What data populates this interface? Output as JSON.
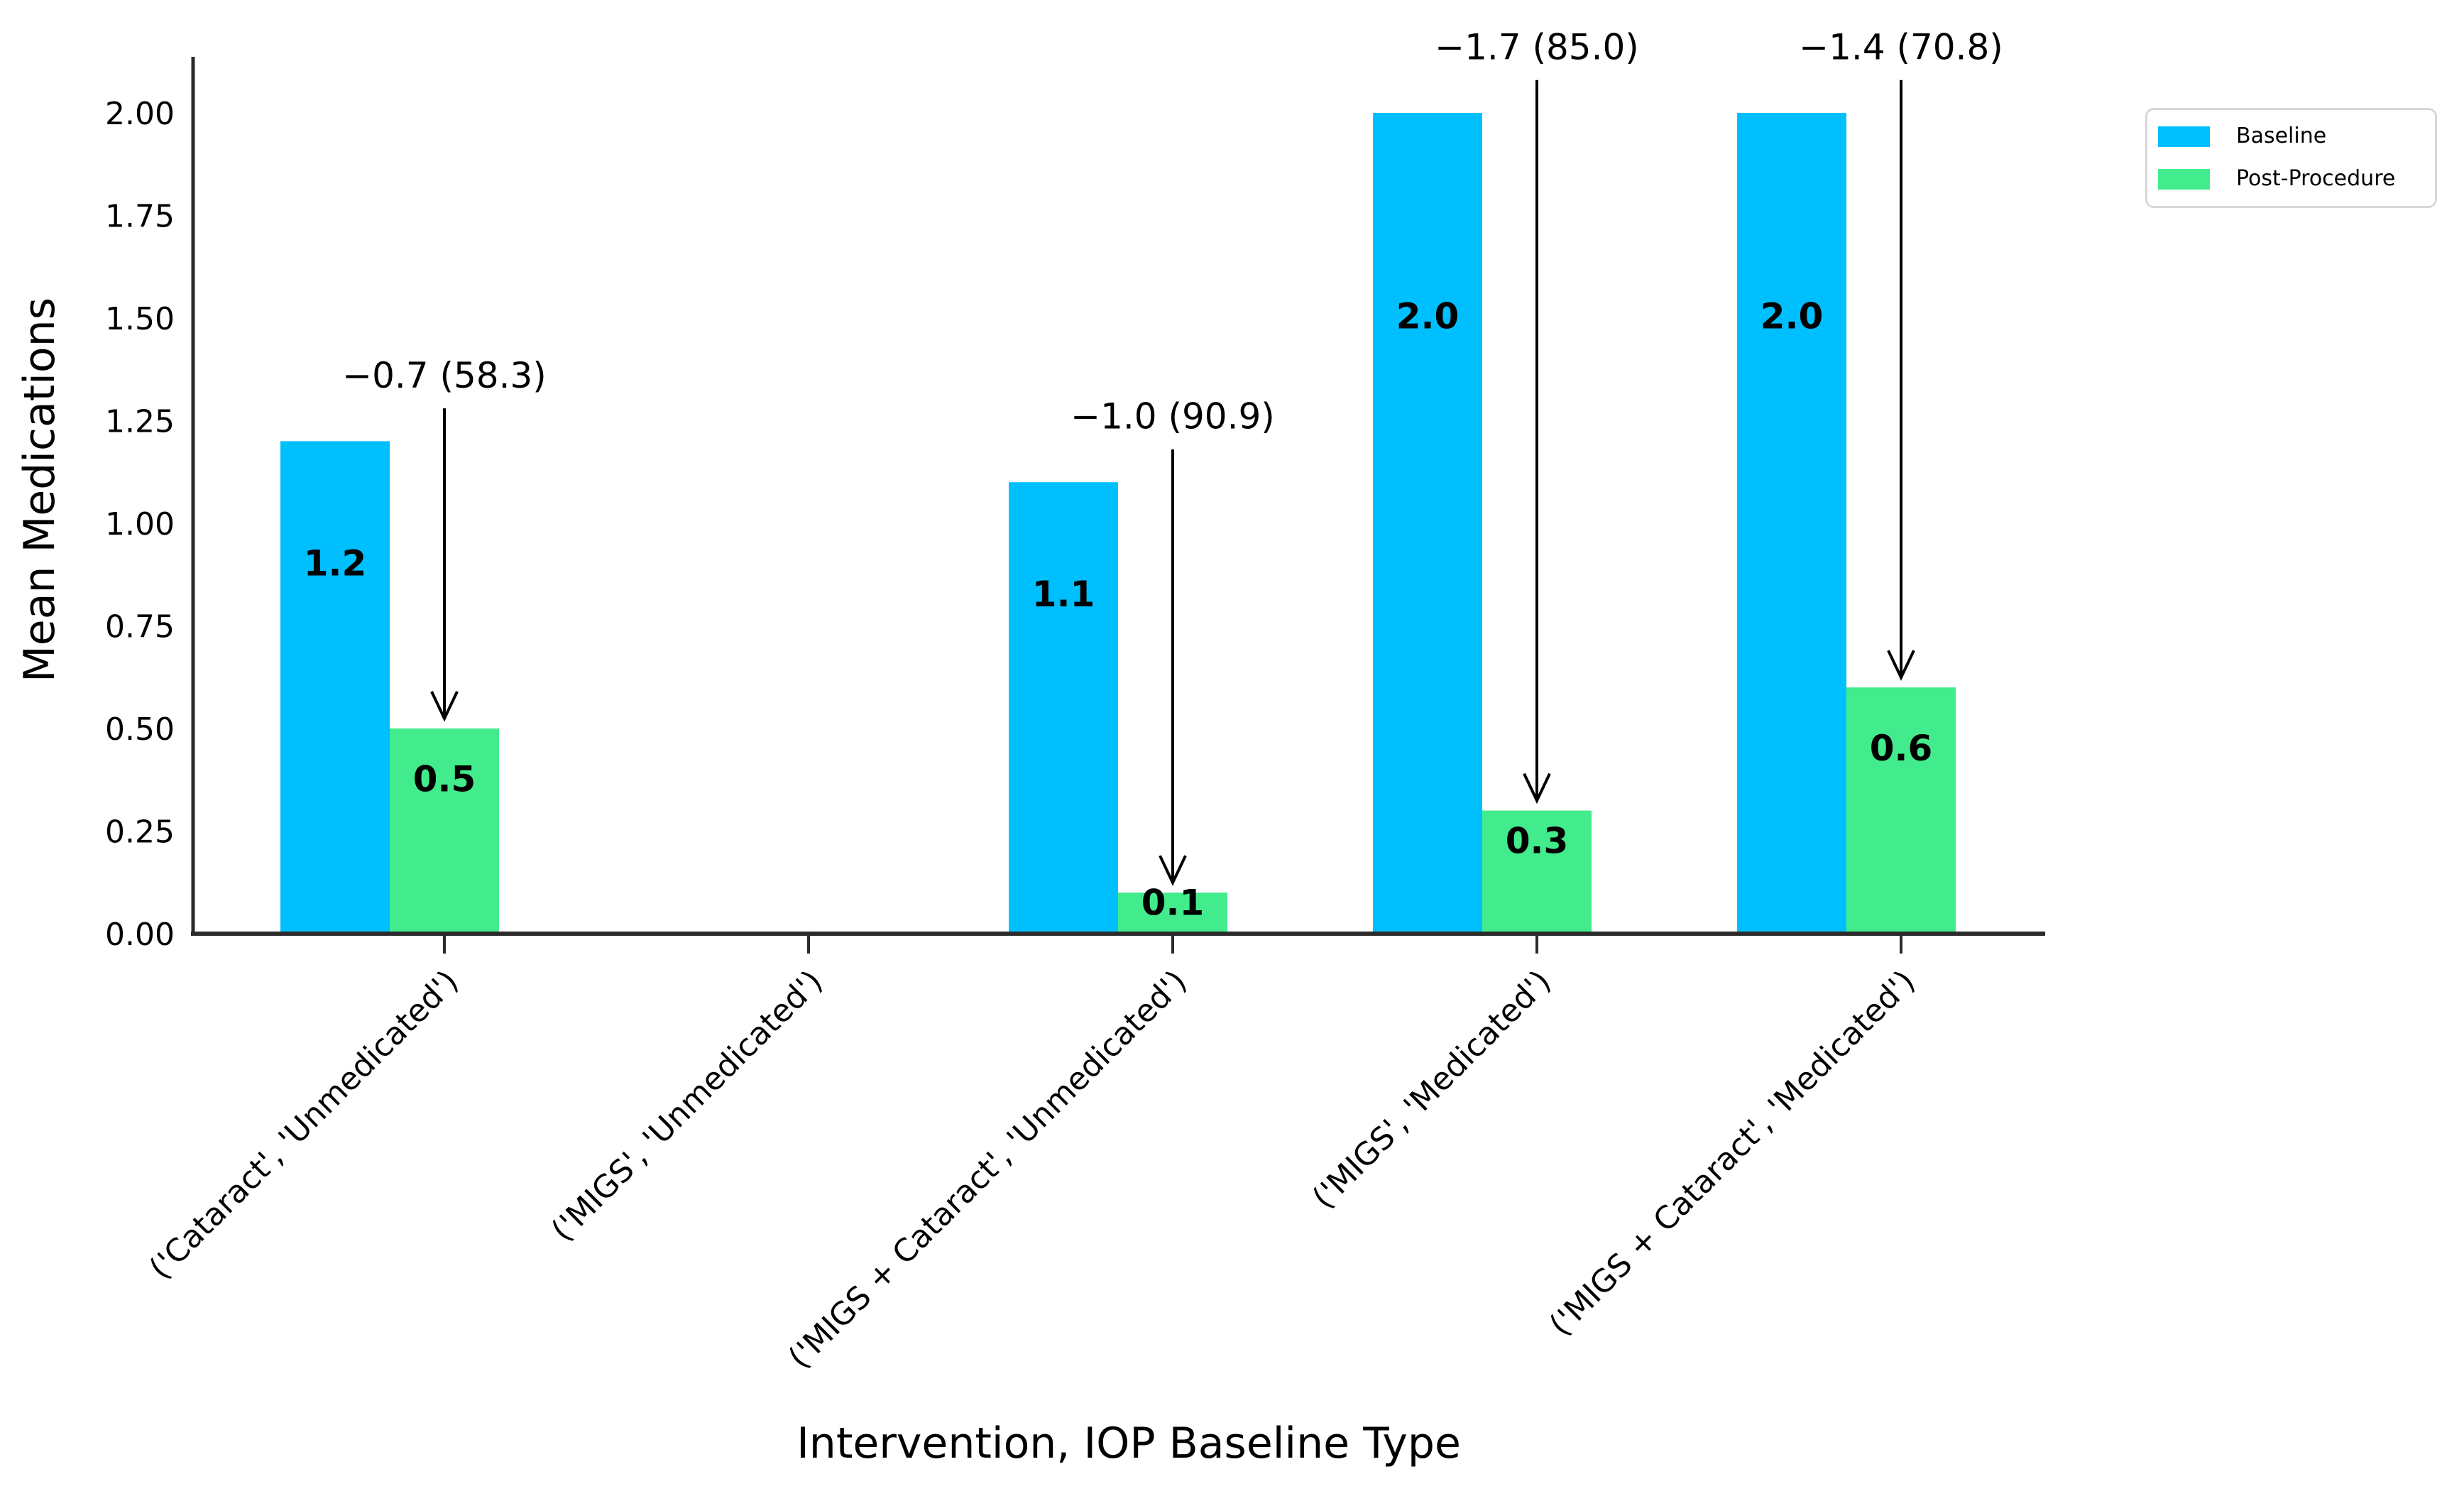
{
  "chart_data": {
    "type": "bar",
    "title": "",
    "xlabel": "Intervention, IOP Baseline Type",
    "ylabel": "Mean Medications",
    "categories": [
      "('Cataract', 'Unmedicated')",
      "('MIGS', 'Unmedicated')",
      "('MIGS + Cataract', 'Unmedicated')",
      "('MIGS', 'Medicated')",
      "('MIGS + Cataract', 'Medicated')"
    ],
    "series": [
      {
        "name": "Baseline",
        "color": "#00BFFF",
        "values": [
          1.2,
          0.0,
          1.1,
          2.0,
          2.0
        ]
      },
      {
        "name": "Post-Procedure",
        "color": "#42EB8C",
        "values": [
          0.5,
          0.0,
          0.1,
          0.3,
          0.6
        ]
      }
    ],
    "annotations": [
      {
        "category_index": 0,
        "text": "−0.7 (58.3)"
      },
      {
        "category_index": 2,
        "text": "−1.0 (90.9)"
      },
      {
        "category_index": 3,
        "text": "−1.7 (85.0)"
      },
      {
        "category_index": 4,
        "text": "−1.4 (70.8)"
      }
    ],
    "y_ticks": [
      "0.00",
      "0.25",
      "0.50",
      "0.75",
      "1.00",
      "1.25",
      "1.50",
      "1.75",
      "2.00"
    ],
    "ylim": [
      0,
      2.14
    ],
    "xtick_rotation": 45,
    "grid": false,
    "legend_position": "upper right"
  },
  "colors": {
    "axis": "#2b2b2b",
    "text": "#000000",
    "arrow": "#000000",
    "legend_border": "#d9d9d9",
    "background": "#ffffff"
  }
}
